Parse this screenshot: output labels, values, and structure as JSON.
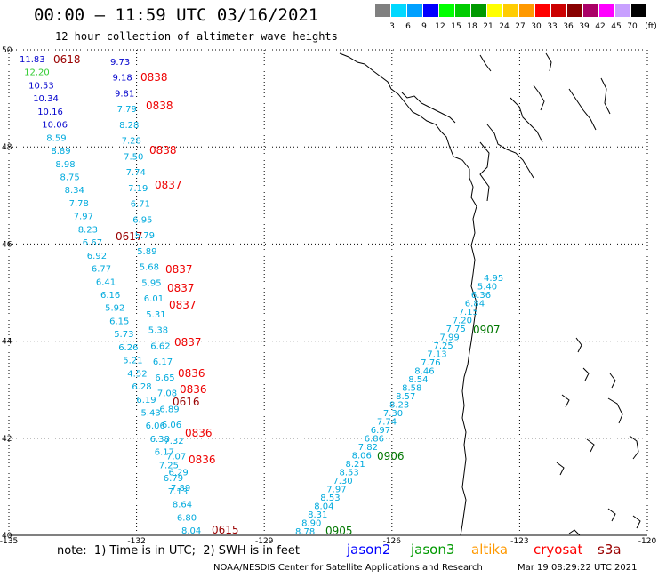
{
  "header": {
    "title": "00:00 — 11:59 UTC 03/16/2021",
    "subtitle": "12 hour collection of altimeter wave heights"
  },
  "legend": {
    "unit": "(ft)",
    "items": [
      {
        "label": "",
        "color": "#808080"
      },
      {
        "label": "3",
        "color": "#00d8ff"
      },
      {
        "label": "6",
        "color": "#00a0ff"
      },
      {
        "label": "9",
        "color": "#0000ff"
      },
      {
        "label": "12",
        "color": "#00ff00"
      },
      {
        "label": "15",
        "color": "#00cc00"
      },
      {
        "label": "18",
        "color": "#009900"
      },
      {
        "label": "21",
        "color": "#ffff00"
      },
      {
        "label": "24",
        "color": "#ffcc00"
      },
      {
        "label": "27",
        "color": "#ff9900"
      },
      {
        "label": "30",
        "color": "#ff0000"
      },
      {
        "label": "33",
        "color": "#cc0000"
      },
      {
        "label": "36",
        "color": "#880000"
      },
      {
        "label": "39",
        "color": "#aa0066"
      },
      {
        "label": "42",
        "color": "#ff00ff"
      },
      {
        "label": "45",
        "color": "#c8a0ff"
      },
      {
        "label": "70",
        "color": "#000000"
      }
    ]
  },
  "map": {
    "lon_labels": [
      "-135",
      "-132",
      "-129",
      "-126",
      "-123",
      "-120"
    ],
    "lat_labels": [
      "40",
      "42",
      "44",
      "46",
      "48",
      "50"
    ]
  },
  "tracks": {
    "west_values": [
      {
        "v": "11.83",
        "c": "#0000cc"
      },
      {
        "v": "12.20",
        "c": "#33cc33"
      },
      {
        "v": "10.53",
        "c": "#0000cc"
      },
      {
        "v": "10.34",
        "c": "#0000cc"
      },
      {
        "v": "10.16",
        "c": "#0000cc"
      },
      {
        "v": "10.06",
        "c": "#0000cc"
      },
      {
        "v": "8.59",
        "c": "#00aadd"
      },
      {
        "v": "8.89",
        "c": "#00aadd"
      },
      {
        "v": "8.98",
        "c": "#00aadd"
      },
      {
        "v": "8.75",
        "c": "#00aadd"
      },
      {
        "v": "8.34",
        "c": "#00aadd"
      },
      {
        "v": "7.78",
        "c": "#00aadd"
      },
      {
        "v": "7.97",
        "c": "#00aadd"
      },
      {
        "v": "8.23",
        "c": "#00aadd"
      },
      {
        "v": "6.67",
        "c": "#00aadd"
      },
      {
        "v": "6.92",
        "c": "#00aadd"
      },
      {
        "v": "6.77",
        "c": "#00aadd"
      },
      {
        "v": "6.41",
        "c": "#00aadd"
      },
      {
        "v": "6.16",
        "c": "#00aadd"
      },
      {
        "v": "5.92",
        "c": "#00aadd"
      },
      {
        "v": "6.15",
        "c": "#00aadd"
      },
      {
        "v": "5.73",
        "c": "#00aadd"
      },
      {
        "v": "6.26",
        "c": "#00aadd"
      },
      {
        "v": "5.21",
        "c": "#00aadd"
      },
      {
        "v": "4.52",
        "c": "#00aadd"
      },
      {
        "v": "6.28",
        "c": "#00aadd"
      },
      {
        "v": "6.19",
        "c": "#00aadd"
      },
      {
        "v": "5.43",
        "c": "#00aadd"
      },
      {
        "v": "6.06",
        "c": "#00aadd"
      },
      {
        "v": "6.38",
        "c": "#00aadd"
      },
      {
        "v": "6.17",
        "c": "#00aadd"
      },
      {
        "v": "7.25",
        "c": "#00aadd"
      },
      {
        "v": "6.79",
        "c": "#00aadd"
      },
      {
        "v": "7.13",
        "c": "#00aadd"
      },
      {
        "v": "8.64",
        "c": "#00aadd"
      },
      {
        "v": "6.80",
        "c": "#00aadd"
      },
      {
        "v": "8.04",
        "c": "#00aadd"
      }
    ],
    "mid_values": [
      {
        "v": "9.73",
        "c": "#0000cc"
      },
      {
        "v": "9.18",
        "c": "#0000cc"
      },
      {
        "v": "9.81",
        "c": "#0000cc"
      },
      {
        "v": "7.79",
        "c": "#00aadd"
      },
      {
        "v": "8.28",
        "c": "#00aadd"
      },
      {
        "v": "7.28",
        "c": "#00aadd"
      },
      {
        "v": "7.50",
        "c": "#00aadd"
      },
      {
        "v": "7.74",
        "c": "#00aadd"
      },
      {
        "v": "7.19",
        "c": "#00aadd"
      },
      {
        "v": "6.71",
        "c": "#00aadd"
      },
      {
        "v": "6.95",
        "c": "#00aadd"
      },
      {
        "v": "5.79",
        "c": "#00aadd"
      },
      {
        "v": "5.89",
        "c": "#00aadd"
      },
      {
        "v": "5.68",
        "c": "#00aadd"
      },
      {
        "v": "5.95",
        "c": "#00aadd"
      },
      {
        "v": "6.01",
        "c": "#00aadd"
      },
      {
        "v": "5.31",
        "c": "#00aadd"
      },
      {
        "v": "5.38",
        "c": "#00aadd"
      },
      {
        "v": "6.62",
        "c": "#00aadd"
      },
      {
        "v": "6.17",
        "c": "#00aadd"
      },
      {
        "v": "6.65",
        "c": "#00aadd"
      },
      {
        "v": "7.08",
        "c": "#00aadd"
      },
      {
        "v": "6.89",
        "c": "#00aadd"
      },
      {
        "v": "6.06",
        "c": "#00aadd"
      },
      {
        "v": "7.32",
        "c": "#00aadd"
      },
      {
        "v": "7.07",
        "c": "#00aadd"
      },
      {
        "v": "6.29",
        "c": "#00aadd"
      },
      {
        "v": "7.89",
        "c": "#00aadd"
      }
    ],
    "east_values": [
      {
        "v": "4.95",
        "c": "#00aadd"
      },
      {
        "v": "5.40",
        "c": "#00aadd"
      },
      {
        "v": "6.36",
        "c": "#00aadd"
      },
      {
        "v": "6.84",
        "c": "#00aadd"
      },
      {
        "v": "7.15",
        "c": "#00aadd"
      },
      {
        "v": "7.20",
        "c": "#00aadd"
      },
      {
        "v": "7.75",
        "c": "#00aadd"
      },
      {
        "v": "7.99",
        "c": "#00aadd"
      },
      {
        "v": "7.25",
        "c": "#00aadd"
      },
      {
        "v": "7.13",
        "c": "#00aadd"
      },
      {
        "v": "7.76",
        "c": "#00aadd"
      },
      {
        "v": "8.46",
        "c": "#00aadd"
      },
      {
        "v": "8.54",
        "c": "#00aadd"
      },
      {
        "v": "8.58",
        "c": "#00aadd"
      },
      {
        "v": "8.57",
        "c": "#00aadd"
      },
      {
        "v": "8.23",
        "c": "#00aadd"
      },
      {
        "v": "7.30",
        "c": "#00aadd"
      },
      {
        "v": "7.74",
        "c": "#00aadd"
      },
      {
        "v": "6.97",
        "c": "#00aadd"
      },
      {
        "v": "6.86",
        "c": "#00aadd"
      },
      {
        "v": "7.82",
        "c": "#00aadd"
      },
      {
        "v": "8.06",
        "c": "#00aadd"
      },
      {
        "v": "8.21",
        "c": "#00aadd"
      },
      {
        "v": "8.53",
        "c": "#00aadd"
      },
      {
        "v": "7.30",
        "c": "#00aadd"
      },
      {
        "v": "7.97",
        "c": "#00aadd"
      },
      {
        "v": "8.53",
        "c": "#00aadd"
      },
      {
        "v": "8.04",
        "c": "#00aadd"
      },
      {
        "v": "8.31",
        "c": "#00aadd"
      },
      {
        "v": "8.90",
        "c": "#00aadd"
      },
      {
        "v": "8.78",
        "c": "#00aadd"
      }
    ],
    "time_labels": [
      {
        "t": "0618",
        "c": "#990000"
      },
      {
        "t": "0838",
        "c": "#ee0000"
      },
      {
        "t": "0838",
        "c": "#ee0000"
      },
      {
        "t": "0838",
        "c": "#ee0000"
      },
      {
        "t": "0837",
        "c": "#ee0000"
      },
      {
        "t": "0617",
        "c": "#990000"
      },
      {
        "t": "0837",
        "c": "#ee0000"
      },
      {
        "t": "0837",
        "c": "#ee0000"
      },
      {
        "t": "0837",
        "c": "#ee0000"
      },
      {
        "t": "0837",
        "c": "#ee0000"
      },
      {
        "t": "0836",
        "c": "#ee0000"
      },
      {
        "t": "0836",
        "c": "#ee0000"
      },
      {
        "t": "0616",
        "c": "#990000"
      },
      {
        "t": "0836",
        "c": "#ee0000"
      },
      {
        "t": "0836",
        "c": "#ee0000"
      },
      {
        "t": "0615",
        "c": "#990000"
      },
      {
        "t": "0907",
        "c": "#007700"
      },
      {
        "t": "0906",
        "c": "#007700"
      },
      {
        "t": "0905",
        "c": "#007700"
      }
    ]
  },
  "footer": {
    "note": "note:  1) Time is in UTC;  2) SWH is in feet",
    "satellites": [
      {
        "name": "jason2",
        "color": "#0000ff"
      },
      {
        "name": "jason3",
        "color": "#009900"
      },
      {
        "name": "altika",
        "color": "#ff9900"
      },
      {
        "name": "cryosat",
        "color": "#ff0000"
      },
      {
        "name": "s3a",
        "color": "#990000"
      }
    ],
    "credit": "NOAA/NESDIS Center for Satellite Applications and Research",
    "timestamp": "Mar 19 08:29:22 UTC 2021"
  }
}
